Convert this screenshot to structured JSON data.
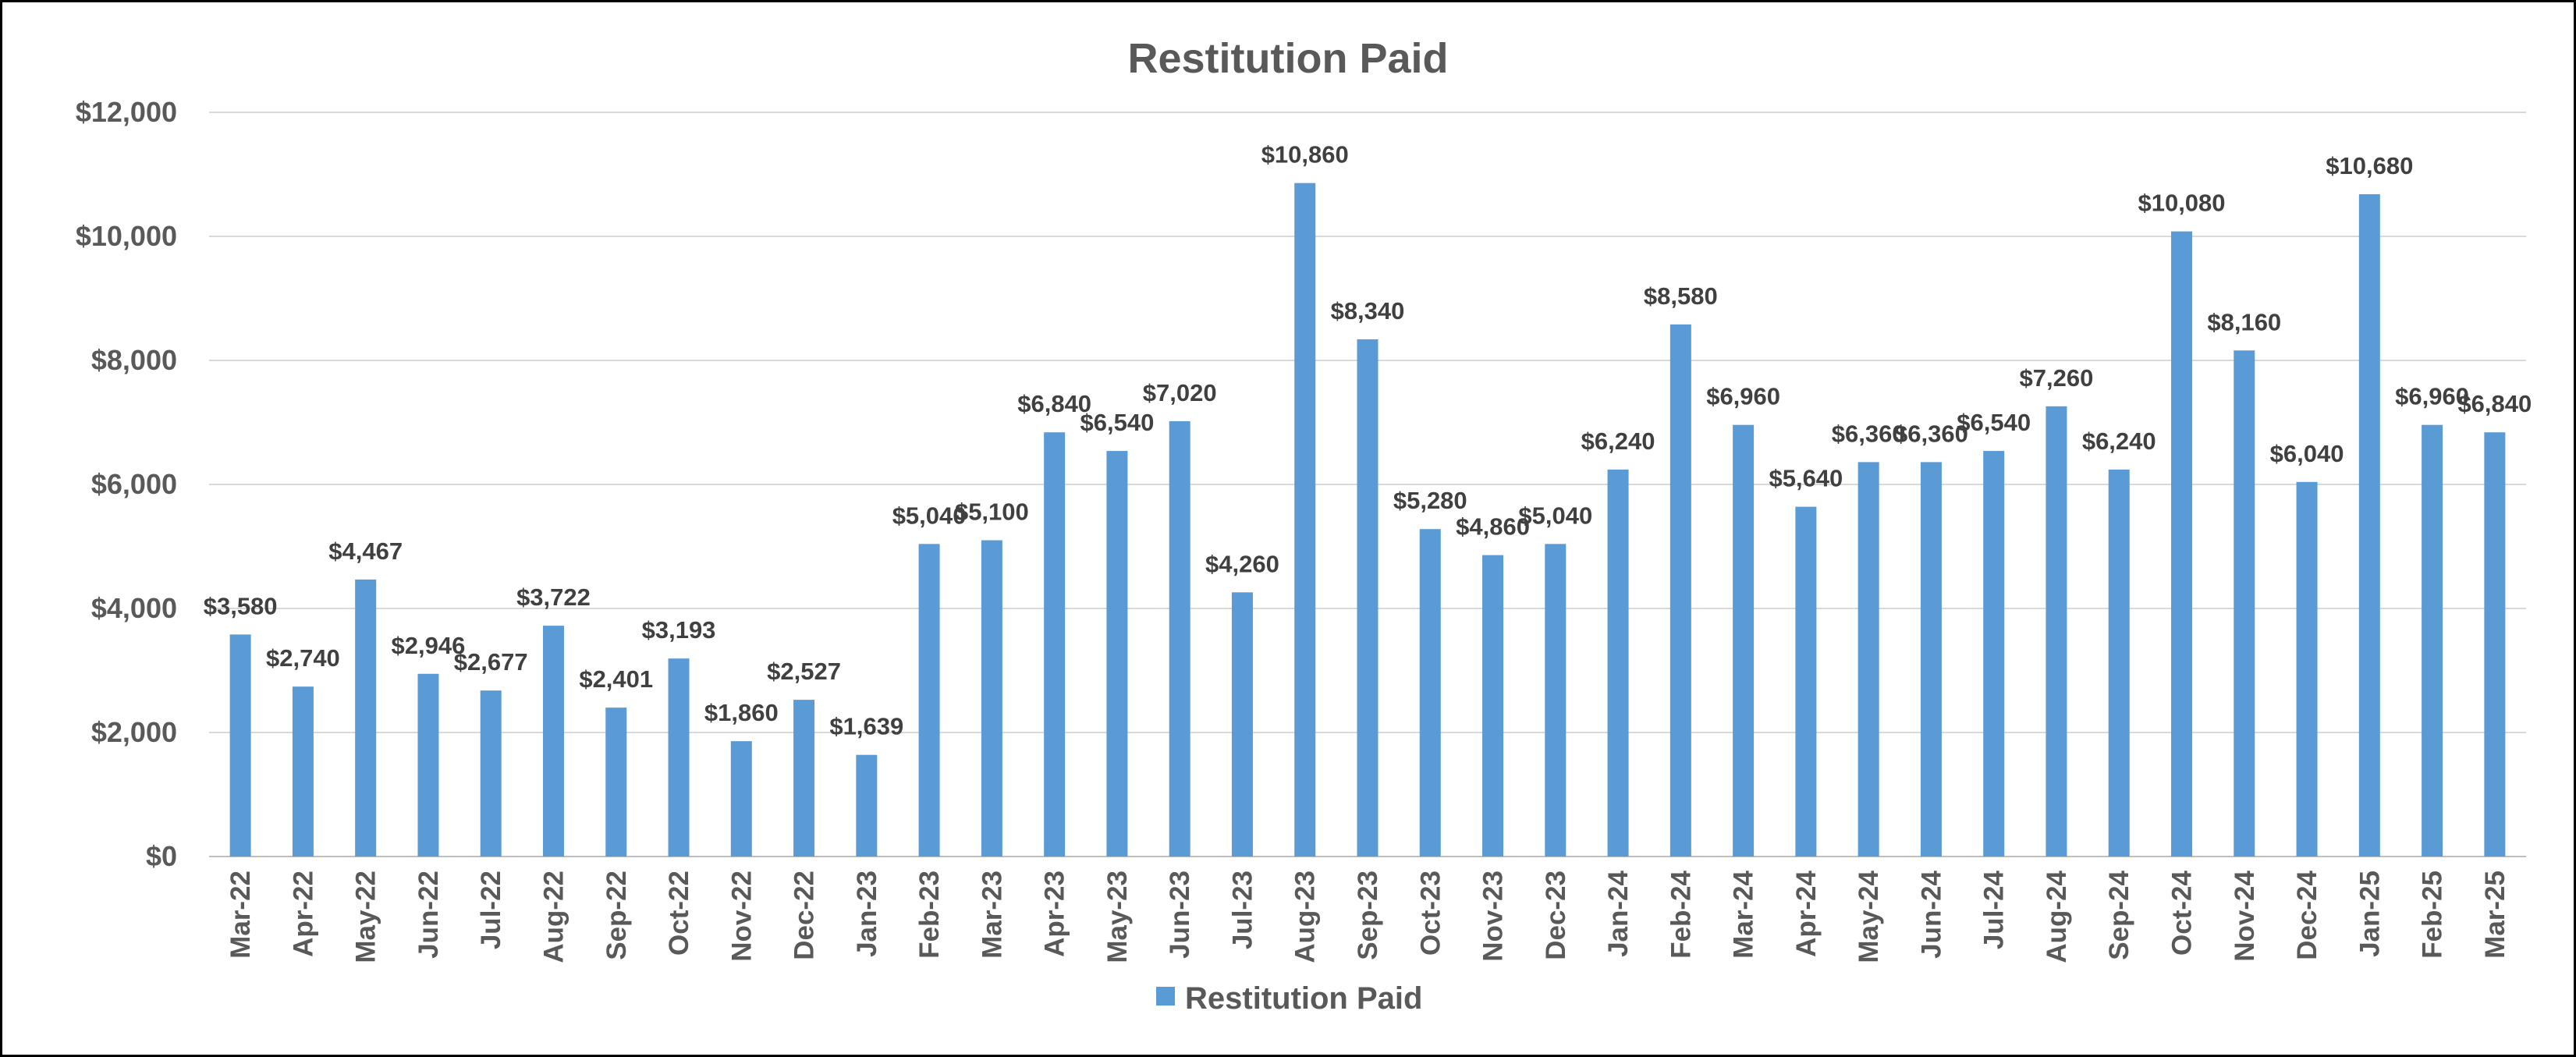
{
  "chart_data": {
    "type": "bar",
    "title": "Restitution Paid",
    "xlabel": "",
    "ylabel": "",
    "ylim": [
      0,
      12000
    ],
    "yticks": [
      0,
      2000,
      4000,
      6000,
      8000,
      10000,
      12000
    ],
    "ytick_labels": [
      "$0",
      "$2,000",
      "$4,000",
      "$6,000",
      "$8,000",
      "$10,000",
      "$12,000"
    ],
    "grid": true,
    "legend_position": "bottom",
    "categories": [
      "Mar-22",
      "Apr-22",
      "May-22",
      "Jun-22",
      "Jul-22",
      "Aug-22",
      "Sep-22",
      "Oct-22",
      "Nov-22",
      "Dec-22",
      "Jan-23",
      "Feb-23",
      "Mar-23",
      "Apr-23",
      "May-23",
      "Jun-23",
      "Jul-23",
      "Aug-23",
      "Sep-23",
      "Oct-23",
      "Nov-23",
      "Dec-23",
      "Jan-24",
      "Feb-24",
      "Mar-24",
      "Apr-24",
      "May-24",
      "Jun-24",
      "Jul-24",
      "Aug-24",
      "Sep-24",
      "Oct-24",
      "Nov-24",
      "Dec-24",
      "Jan-25",
      "Feb-25",
      "Mar-25"
    ],
    "series": [
      {
        "name": "Restitution Paid",
        "color": "#5B9BD5",
        "values": [
          3580,
          2740,
          4467,
          2946,
          2677,
          3722,
          2401,
          3193,
          1860,
          2527,
          1639,
          5040,
          5100,
          6840,
          6540,
          7020,
          4260,
          10860,
          8340,
          5280,
          4860,
          5040,
          6240,
          8580,
          6960,
          5640,
          6360,
          6360,
          6540,
          7260,
          6240,
          10080,
          8160,
          6040,
          10680,
          6960,
          6840
        ],
        "data_labels": [
          "$3,580",
          "$2,740",
          "$4,467",
          "$2,946",
          "$2,677",
          "$3,722",
          "$2,401",
          "$3,193",
          "$1,860",
          "$2,527",
          "$1,639",
          "$5,040",
          "$5,100",
          "$6,840",
          "$6,540",
          "$7,020",
          "$4,260",
          "$10,860",
          "$8,340",
          "$5,280",
          "$4,860",
          "$5,040",
          "$6,240",
          "$8,580",
          "$6,960",
          "$5,640",
          "$6,360",
          "$6,360",
          "$6,540",
          "$7,260",
          "$6,240",
          "$10,080",
          "$8,160",
          "$6,040",
          "$10,680",
          "$6,960",
          "$6,840"
        ]
      }
    ],
    "colors": {
      "gridline": "#D9D9D9",
      "axis": "#BFBFBF",
      "bar": "#5B9BD5"
    }
  }
}
